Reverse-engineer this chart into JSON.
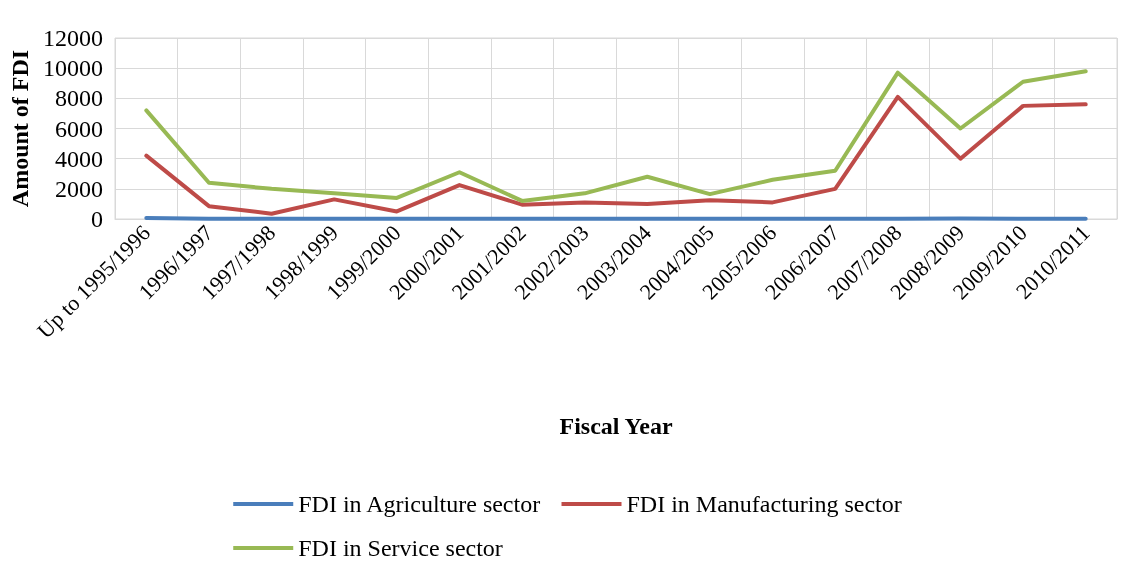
{
  "chart_data": {
    "type": "line",
    "xlabel": "Fiscal Year",
    "ylabel": "Amount of FDI",
    "categories": [
      "Up to 1995/1996",
      "1996/1997",
      "1997/1998",
      "1998/1999",
      "1999/2000",
      "2000/2001",
      "2001/2002",
      "2002/2003",
      "2003/2004",
      "2004/2005",
      "2005/2006",
      "2006/2007",
      "2007/2008",
      "2008/2009",
      "2009/2010",
      "2010/2011"
    ],
    "series": [
      {
        "name": "FDI in Agriculture sector",
        "color": "#4a7ebb",
        "values": [
          60,
          10,
          10,
          10,
          10,
          10,
          10,
          10,
          10,
          10,
          10,
          10,
          10,
          30,
          10,
          10
        ]
      },
      {
        "name": "FDI in Manufacturing sector",
        "color": "#be4b48",
        "values": [
          4200,
          850,
          350,
          1300,
          500,
          2250,
          950,
          1100,
          1000,
          1250,
          1100,
          2000,
          8100,
          4000,
          7500,
          7600
        ]
      },
      {
        "name": "FDI in Service sector",
        "color": "#98b954",
        "values": [
          7200,
          2400,
          2000,
          1700,
          1400,
          3100,
          1200,
          1700,
          2800,
          1650,
          2600,
          3200,
          9700,
          6000,
          9100,
          9800
        ]
      }
    ],
    "ylim": [
      0,
      12000
    ],
    "yticks": [
      0,
      2000,
      4000,
      6000,
      8000,
      10000,
      12000
    ],
    "grid": true,
    "legend": "bottom",
    "marker": "none",
    "line_style": "solid"
  }
}
